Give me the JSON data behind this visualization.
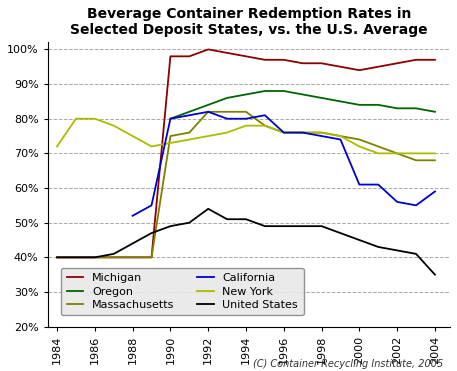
{
  "title": "Beverage Container Redemption Rates in\nSelected Deposit States, vs. the U.S. Average",
  "caption": "(C) Container Recycling Institute, 2005",
  "ylim": [
    0.2,
    1.02
  ],
  "yticks": [
    0.2,
    0.3,
    0.4,
    0.5,
    0.6,
    0.7,
    0.8,
    0.9,
    1.0
  ],
  "xticks": [
    1984,
    1986,
    1988,
    1990,
    1992,
    1994,
    1996,
    1998,
    2000,
    2002,
    2004
  ],
  "xlim": [
    1983.5,
    2004.8
  ],
  "series": {
    "Michigan": {
      "color": "#8B0000",
      "years": [
        1984,
        1985,
        1986,
        1987,
        1988,
        1989,
        1990,
        1991,
        1992,
        1993,
        1994,
        1995,
        1996,
        1997,
        1998,
        1999,
        2000,
        2001,
        2002,
        2003,
        2004
      ],
      "values": [
        0.4,
        0.4,
        0.4,
        0.4,
        0.4,
        0.4,
        0.98,
        0.98,
        1.0,
        0.99,
        0.98,
        0.97,
        0.97,
        0.96,
        0.96,
        0.95,
        0.94,
        0.95,
        0.96,
        0.97,
        0.97
      ]
    },
    "Massachusetts": {
      "color": "#808000",
      "years": [
        1984,
        1985,
        1986,
        1987,
        1988,
        1989,
        1990,
        1991,
        1992,
        1993,
        1994,
        1995,
        1996,
        1997,
        1998,
        1999,
        2000,
        2001,
        2002,
        2003,
        2004
      ],
      "values": [
        0.4,
        0.4,
        0.4,
        0.4,
        0.4,
        0.4,
        0.75,
        0.76,
        0.82,
        0.82,
        0.82,
        0.78,
        0.76,
        0.76,
        0.76,
        0.75,
        0.74,
        0.72,
        0.7,
        0.68,
        0.68
      ]
    },
    "New York": {
      "color": "#ADBB00",
      "years": [
        1984,
        1985,
        1986,
        1987,
        1988,
        1989,
        1990,
        1991,
        1992,
        1993,
        1994,
        1995,
        1996,
        1997,
        1998,
        1999,
        2000,
        2001,
        2002,
        2003,
        2004
      ],
      "values": [
        0.72,
        0.8,
        0.8,
        0.78,
        0.75,
        0.72,
        0.73,
        0.74,
        0.75,
        0.76,
        0.78,
        0.78,
        0.76,
        0.76,
        0.76,
        0.75,
        0.72,
        0.7,
        0.7,
        0.7,
        0.7
      ]
    },
    "Oregon": {
      "color": "#006400",
      "years": [
        1990,
        1991,
        1992,
        1993,
        1994,
        1995,
        1996,
        1997,
        1998,
        1999,
        2000,
        2001,
        2002,
        2003,
        2004
      ],
      "values": [
        0.8,
        0.82,
        0.84,
        0.86,
        0.87,
        0.88,
        0.88,
        0.87,
        0.86,
        0.85,
        0.84,
        0.84,
        0.83,
        0.83,
        0.82
      ]
    },
    "California": {
      "color": "#0000CD",
      "years": [
        1988,
        1989,
        1990,
        1991,
        1992,
        1993,
        1994,
        1995,
        1996,
        1997,
        1998,
        1999,
        2000,
        2001,
        2002,
        2003,
        2004
      ],
      "values": [
        0.52,
        0.55,
        0.8,
        0.81,
        0.82,
        0.8,
        0.8,
        0.81,
        0.76,
        0.76,
        0.75,
        0.74,
        0.61,
        0.61,
        0.56,
        0.55,
        0.59
      ]
    },
    "United States": {
      "color": "#000000",
      "years": [
        1984,
        1985,
        1986,
        1987,
        1988,
        1989,
        1990,
        1991,
        1992,
        1993,
        1994,
        1995,
        1996,
        1997,
        1998,
        1999,
        2000,
        2001,
        2002,
        2003,
        2004
      ],
      "values": [
        0.4,
        0.4,
        0.4,
        0.41,
        0.44,
        0.47,
        0.49,
        0.5,
        0.54,
        0.51,
        0.51,
        0.49,
        0.49,
        0.49,
        0.49,
        0.47,
        0.45,
        0.43,
        0.42,
        0.41,
        0.35
      ]
    }
  },
  "legend_order": [
    "Michigan",
    "Oregon",
    "Massachusetts",
    "California",
    "New York",
    "United States"
  ],
  "legend_ncol": 2,
  "grid_color": "#aaaaaa",
  "title_fontsize": 10,
  "tick_fontsize": 8,
  "legend_fontsize": 8
}
